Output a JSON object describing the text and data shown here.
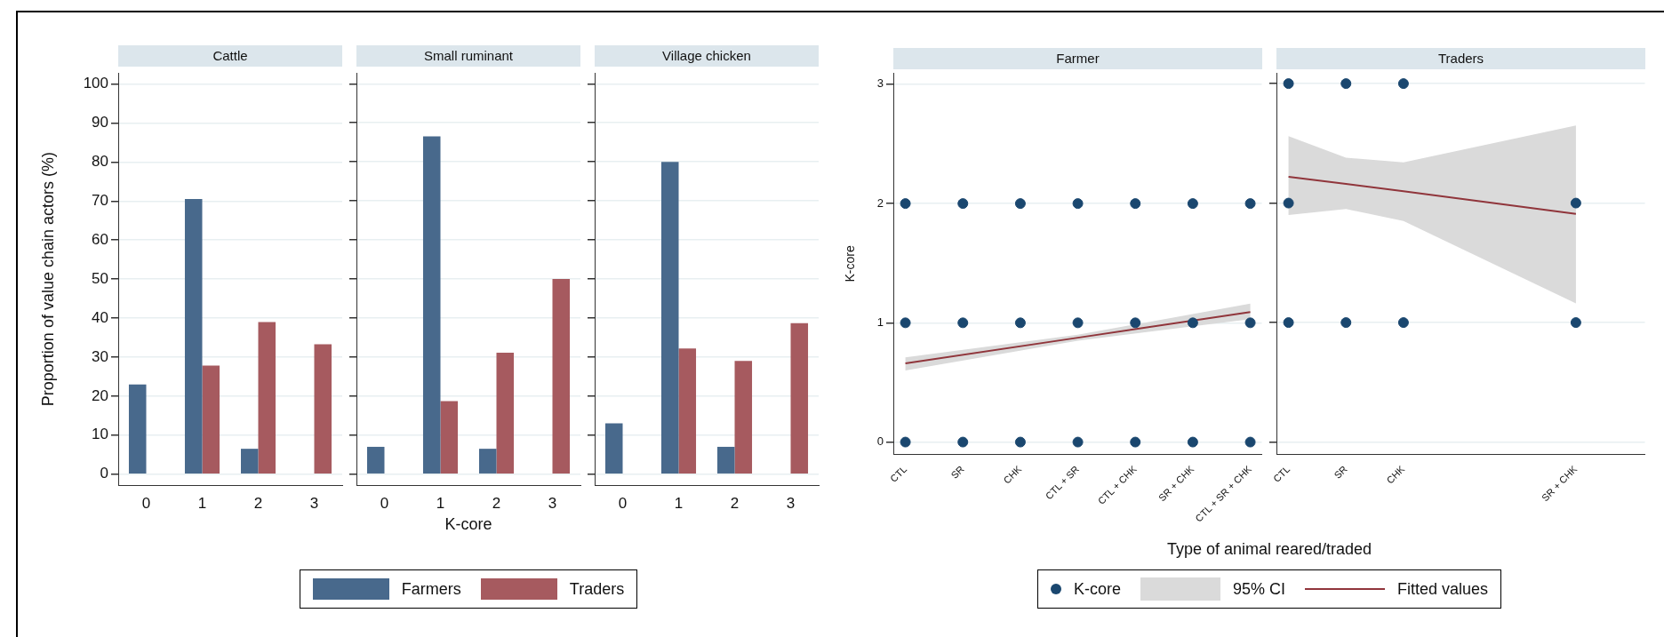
{
  "chart_data": [
    {
      "type": "bar",
      "title": "Cattle",
      "ylabel": "Proportion of value chain actors (%)",
      "categories": [
        "0",
        "1",
        "2",
        "3"
      ],
      "series": [
        {
          "color": "#48698c",
          "values": [
            23,
            70.5,
            6.5,
            null
          ]
        },
        {
          "color": "#a65a5f",
          "values": [
            null,
            27.8,
            39,
            33.3
          ]
        }
      ],
      "ylim": [
        -2.8,
        102.8
      ],
      "yticks": [
        0,
        10,
        20,
        30,
        40,
        50,
        60,
        70,
        80,
        90,
        100
      ],
      "grid": "y"
    },
    {
      "type": "bar",
      "title": "Small ruminant",
      "xlabel": "K-core",
      "categories": [
        "0",
        "1",
        "2",
        "3"
      ],
      "series": [
        {
          "name": "Farmers",
          "color": "#48698c",
          "values": [
            7,
            86.5,
            6.5,
            null
          ]
        },
        {
          "name": "Traders",
          "color": "#a65a5f",
          "values": [
            null,
            18.7,
            31.1,
            50
          ]
        }
      ],
      "ylim": [
        -2.8,
        102.8
      ],
      "yticks": [
        0,
        10,
        20,
        30,
        40,
        50,
        60,
        70,
        80,
        90,
        100
      ],
      "grid": "y",
      "tick_labels": "x",
      "legend": "bottom"
    },
    {
      "type": "bar",
      "title": "Village chicken",
      "categories": [
        "0",
        "1",
        "2",
        "3"
      ],
      "series": [
        {
          "color": "#48698c",
          "values": [
            13,
            80,
            7,
            null
          ]
        },
        {
          "color": "#a65a5f",
          "values": [
            null,
            32.2,
            29,
            38.7
          ]
        }
      ],
      "ylim": [
        -2.8,
        102.8
      ],
      "yticks": [
        0,
        10,
        20,
        30,
        40,
        50,
        60,
        70,
        80,
        90,
        100
      ],
      "grid": "y",
      "tick_labels": "x"
    },
    {
      "type": "scatter",
      "title": "Farmer",
      "ylabel": "K-core",
      "xlabel": "Type of animal reared/traded",
      "legend": "bottom",
      "grid": "y",
      "marker": "circle",
      "annotations": [
        "95% CI"
      ],
      "categories": [
        "CTL",
        "SR",
        "CHK",
        "CTL + SR",
        "CTL + CHK",
        "SR + CHK",
        "CTL + SR + CHK"
      ],
      "series": [
        {
          "name": "K-core",
          "type": "scatter",
          "color": "#1a476f",
          "x": [
            "CTL",
            "CTL",
            "CTL",
            "SR",
            "SR",
            "SR",
            "CHK",
            "CHK",
            "CHK",
            "CTL + SR",
            "CTL + SR",
            "CTL + SR",
            "CTL + CHK",
            "CTL + CHK",
            "CTL + CHK",
            "SR + CHK",
            "SR + CHK",
            "SR + CHK",
            "CTL + SR + CHK",
            "CTL + SR + CHK",
            "CTL + SR + CHK"
          ],
          "values": [
            0,
            1,
            2,
            0,
            1,
            2,
            0,
            1,
            2,
            0,
            1,
            2,
            0,
            1,
            2,
            0,
            1,
            2,
            0,
            1,
            2
          ]
        },
        {
          "name": "Fitted values",
          "type": "line",
          "marker": "none",
          "color": "#90353b",
          "x": [
            "CTL",
            "CTL + SR",
            "CTL + SR + CHK"
          ],
          "values": [
            0.66,
            0.875,
            1.09
          ],
          "lower": [
            0.6,
            0.85,
            1.03
          ],
          "upper": [
            0.71,
            0.9,
            1.16
          ]
        }
      ],
      "ylim": [
        -0.1,
        3.09
      ],
      "yticks": [
        0,
        1,
        2,
        3
      ]
    },
    {
      "type": "scatter",
      "title": "Traders",
      "grid": "y",
      "marker": "circle",
      "tick_labels": "x",
      "categories": [
        "CTL",
        "SR",
        "CHK",
        null,
        null,
        "SR + CHK",
        null
      ],
      "series": [
        {
          "type": "scatter",
          "color": "#1a476f",
          "x": [
            "CTL",
            "CTL",
            "CTL",
            "SR",
            "SR",
            "CHK",
            "CHK",
            "SR + CHK",
            "SR + CHK"
          ],
          "values": [
            3,
            2,
            1,
            3,
            1,
            3,
            1,
            2,
            1
          ]
        },
        {
          "type": "line",
          "marker": "none",
          "color": "#90353b",
          "x": [
            "CTL",
            "SR",
            "CHK",
            "SR + CHK"
          ],
          "values": [
            2.22,
            2.16,
            2.1,
            1.91
          ],
          "lower": [
            1.9,
            1.95,
            1.85,
            1.16
          ],
          "upper": [
            2.56,
            2.38,
            2.34,
            2.65
          ]
        }
      ],
      "ylim": [
        -0.1,
        3.09
      ],
      "yticks": [
        0,
        1,
        2,
        3
      ]
    }
  ]
}
